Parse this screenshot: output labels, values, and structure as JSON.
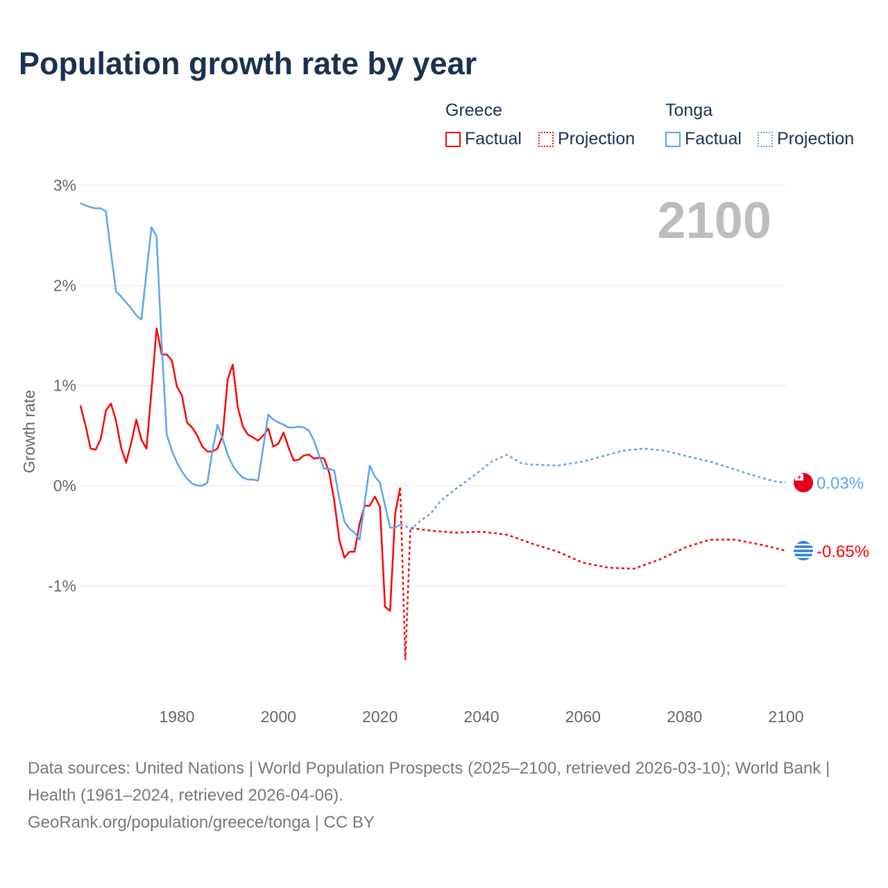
{
  "title": "Population growth rate by year",
  "legend": {
    "groups": [
      {
        "name": "Greece",
        "factual": "Factual",
        "projection": "Projection"
      },
      {
        "name": "Tonga",
        "factual": "Factual",
        "projection": "Projection"
      }
    ]
  },
  "footer": {
    "sources": "Data sources: United Nations | World Population Prospects (2025–2100, retrieved 2026-03-10); World Bank | Health (1961–2024, retrieved 2026-04-06).",
    "credit": "GeoRank.org/population/greece/tonga | CC BY"
  },
  "chart_data": {
    "type": "line",
    "title": "Population growth rate by year",
    "xlabel": "",
    "ylabel": "Growth rate",
    "xlim": [
      1961,
      2100
    ],
    "ylim": [
      -1.9,
      3.0
    ],
    "x_ticks": [
      1980,
      2000,
      2020,
      2040,
      2060,
      2080,
      2100
    ],
    "y_ticks": [
      {
        "v": 3,
        "label": "3%"
      },
      {
        "v": 2,
        "label": "2%"
      },
      {
        "v": 1,
        "label": "1%"
      },
      {
        "v": 0,
        "label": "0%"
      },
      {
        "v": -1,
        "label": "-1%"
      }
    ],
    "grid": true,
    "current_year": "2100",
    "series": [
      {
        "name": "Greece",
        "color": "#ff0000",
        "end_label": "-0.65%",
        "flag": "greece",
        "factual": {
          "x_start": 1961,
          "values": [
            0.8,
            0.6,
            0.37,
            0.36,
            0.47,
            0.75,
            0.82,
            0.65,
            0.38,
            0.23,
            0.43,
            0.66,
            0.46,
            0.37,
            0.95,
            1.57,
            1.31,
            1.31,
            1.25,
            0.99,
            0.9,
            0.63,
            0.58,
            0.5,
            0.39,
            0.34,
            0.34,
            0.37,
            0.5,
            1.06,
            1.21,
            0.78,
            0.59,
            0.51,
            0.48,
            0.45,
            0.5,
            0.57,
            0.39,
            0.42,
            0.53,
            0.38,
            0.25,
            0.26,
            0.3,
            0.31,
            0.27,
            0.28,
            0.27,
            0.13,
            -0.15,
            -0.54,
            -0.72,
            -0.66,
            -0.66,
            -0.38,
            -0.2,
            -0.2,
            -0.11,
            -0.21,
            -1.21,
            -1.25,
            -0.28,
            -0.02
          ]
        },
        "projection": [
          [
            2024,
            -0.02
          ],
          [
            2025,
            -1.74
          ],
          [
            2026,
            -0.42
          ],
          [
            2027,
            -0.43
          ],
          [
            2030,
            -0.45
          ],
          [
            2035,
            -0.47
          ],
          [
            2040,
            -0.46
          ],
          [
            2045,
            -0.49
          ],
          [
            2050,
            -0.58
          ],
          [
            2055,
            -0.66
          ],
          [
            2060,
            -0.77
          ],
          [
            2065,
            -0.82
          ],
          [
            2070,
            -0.83
          ],
          [
            2075,
            -0.74
          ],
          [
            2080,
            -0.62
          ],
          [
            2085,
            -0.54
          ],
          [
            2090,
            -0.54
          ],
          [
            2095,
            -0.59
          ],
          [
            2100,
            -0.65
          ]
        ]
      },
      {
        "name": "Tonga",
        "color": "#5aa5ec",
        "end_label": "0.03%",
        "flag": "tonga",
        "factual": {
          "x_start": 1961,
          "values": [
            2.82,
            2.8,
            2.78,
            2.77,
            2.77,
            2.74,
            2.33,
            1.94,
            1.89,
            1.83,
            1.77,
            1.7,
            1.66,
            2.13,
            2.58,
            2.49,
            1.4,
            0.51,
            0.35,
            0.23,
            0.14,
            0.07,
            0.02,
            0.0,
            0.0,
            0.03,
            0.35,
            0.61,
            0.47,
            0.31,
            0.2,
            0.13,
            0.08,
            0.06,
            0.06,
            0.05,
            0.38,
            0.71,
            0.66,
            0.63,
            0.61,
            0.58,
            0.58,
            0.59,
            0.58,
            0.55,
            0.45,
            0.3,
            0.17,
            0.17,
            0.15,
            -0.13,
            -0.36,
            -0.43,
            -0.47,
            -0.54,
            -0.17,
            0.2,
            0.09,
            0.03,
            -0.2,
            -0.42,
            -0.42,
            -0.39
          ]
        },
        "projection": [
          [
            2024,
            -0.39
          ],
          [
            2025,
            -0.4
          ],
          [
            2026,
            -0.44
          ],
          [
            2028,
            -0.35
          ],
          [
            2030,
            -0.28
          ],
          [
            2032,
            -0.15
          ],
          [
            2035,
            -0.03
          ],
          [
            2038,
            0.08
          ],
          [
            2040,
            0.16
          ],
          [
            2042,
            0.24
          ],
          [
            2045,
            0.31
          ],
          [
            2048,
            0.22
          ],
          [
            2050,
            0.21
          ],
          [
            2055,
            0.2
          ],
          [
            2060,
            0.24
          ],
          [
            2065,
            0.31
          ],
          [
            2068,
            0.35
          ],
          [
            2072,
            0.37
          ],
          [
            2076,
            0.35
          ],
          [
            2080,
            0.3
          ],
          [
            2085,
            0.24
          ],
          [
            2090,
            0.16
          ],
          [
            2095,
            0.08
          ],
          [
            2098,
            0.04
          ],
          [
            2100,
            0.03
          ]
        ]
      }
    ]
  }
}
